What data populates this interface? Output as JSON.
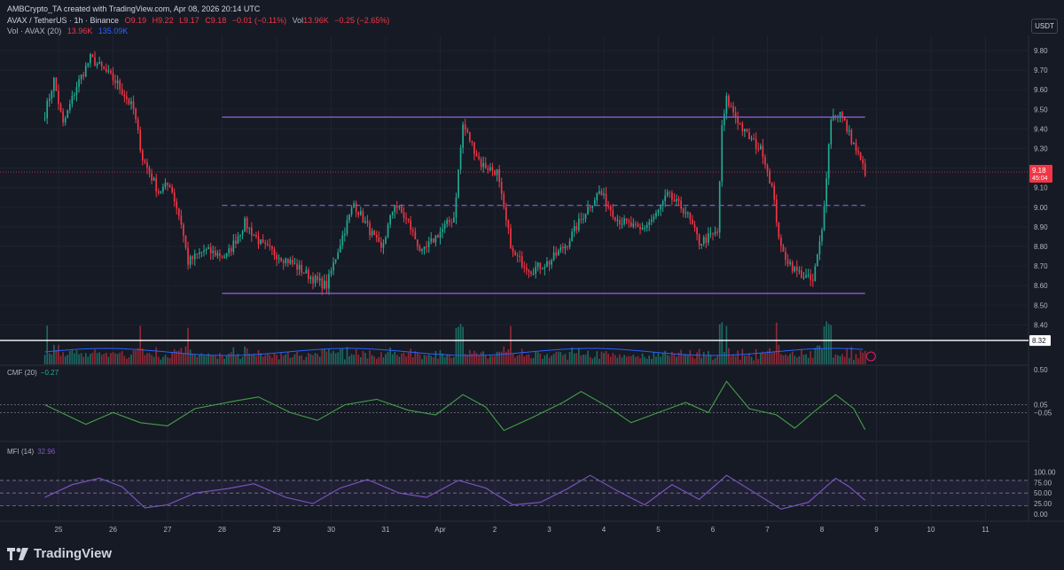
{
  "header": {
    "credit": "AMBCrypto_TA created with TradingView.com, Apr 08, 2026 20:14 UTC",
    "symbol": "AVAX / TetherUS · 1h · Binance",
    "open": "O9.19",
    "high": "H9.22",
    "low": "L9.17",
    "close": "C9.18",
    "change": "−0.01 (−0.11%)",
    "vol_label": "Vol",
    "vol_value": "13.96K",
    "vol_change": "−0.25 (−2.65%)",
    "vol_ma_label": "Vol · AVAX (20)",
    "vol_ma_1": "13.96K",
    "vol_ma_2": "135.09K"
  },
  "currency_button": "USDT",
  "colors": {
    "background": "#161a25",
    "up": "#22ab94",
    "down": "#f23645",
    "range_lines": "#7e57c2",
    "indicator_cmf": "#43a047",
    "indicator_mfi": "#7e57c2",
    "price_label": "#f23645"
  },
  "chart_data": [
    {
      "type": "candlestick",
      "title": "AVAX / TetherUS · 1h · Binance",
      "x_ticks": [
        "25",
        "26",
        "27",
        "28",
        "29",
        "30",
        "31",
        "Apr",
        "2",
        "3",
        "4",
        "5",
        "6",
        "7",
        "8",
        "9",
        "10",
        "11"
      ],
      "y_ticks": [
        "9.80",
        "9.70",
        "9.60",
        "9.50",
        "9.40",
        "9.30",
        "9.20",
        "9.10",
        "9.00",
        "8.90",
        "8.80",
        "8.70",
        "8.60",
        "8.50",
        "8.40"
      ],
      "ylim": [
        8.3,
        9.88
      ],
      "current_price": 9.18,
      "current_price_label": "9.18",
      "countdown_label": "45:04",
      "marked_level": 8.32,
      "marked_level_label": "8.32",
      "range_high": 9.46,
      "range_mid": 9.01,
      "range_low": 8.56,
      "anchors": [
        {
          "x": "Mar 24 18:00",
          "y": 9.48
        },
        {
          "x": "Mar 24 22:00",
          "y": 9.65
        },
        {
          "x": "Mar 25 02:00",
          "y": 9.42
        },
        {
          "x": "Mar 25 08:00",
          "y": 9.62
        },
        {
          "x": "Mar 25 14:00",
          "y": 9.76
        },
        {
          "x": "Mar 25 20:00",
          "y": 9.7
        },
        {
          "x": "Mar 26 02:00",
          "y": 9.63
        },
        {
          "x": "Mar 26 09:00",
          "y": 9.5
        },
        {
          "x": "Mar 26 13:00",
          "y": 9.25
        },
        {
          "x": "Mar 26 20:00",
          "y": 9.08
        },
        {
          "x": "Mar 27 01:00",
          "y": 9.12
        },
        {
          "x": "Mar 27 06:00",
          "y": 8.92
        },
        {
          "x": "Mar 27 09:00",
          "y": 8.72
        },
        {
          "x": "Mar 27 16:00",
          "y": 8.78
        },
        {
          "x": "Mar 28 02:00",
          "y": 8.75
        },
        {
          "x": "Mar 28 10:00",
          "y": 8.92
        },
        {
          "x": "Mar 28 18:00",
          "y": 8.8
        },
        {
          "x": "Mar 29 06:00",
          "y": 8.72
        },
        {
          "x": "Mar 29 18:00",
          "y": 8.62
        },
        {
          "x": "Mar 29 22:00",
          "y": 8.6
        },
        {
          "x": "Mar 30 04:00",
          "y": 8.82
        },
        {
          "x": "Mar 30 10:00",
          "y": 9.02
        },
        {
          "x": "Mar 30 16:00",
          "y": 8.9
        },
        {
          "x": "Mar 30 22:00",
          "y": 8.78
        },
        {
          "x": "Mar 31 04:00",
          "y": 9.02
        },
        {
          "x": "Mar 31 10:00",
          "y": 8.92
        },
        {
          "x": "Mar 31 16:00",
          "y": 8.76
        },
        {
          "x": "Mar 31 22:00",
          "y": 8.85
        },
        {
          "x": "Apr 01 06:00",
          "y": 8.95
        },
        {
          "x": "Apr 01 10:00",
          "y": 9.42
        },
        {
          "x": "Apr 01 18:00",
          "y": 9.22
        },
        {
          "x": "Apr 02 01:00",
          "y": 9.18
        },
        {
          "x": "Apr 02 04:00",
          "y": 8.98
        },
        {
          "x": "Apr 02 08:00",
          "y": 8.76
        },
        {
          "x": "Apr 02 16:00",
          "y": 8.68
        },
        {
          "x": "Apr 03 00:00",
          "y": 8.72
        },
        {
          "x": "Apr 03 08:00",
          "y": 8.82
        },
        {
          "x": "Apr 03 16:00",
          "y": 8.98
        },
        {
          "x": "Apr 03 22:00",
          "y": 9.08
        },
        {
          "x": "Apr 04 06:00",
          "y": 8.94
        },
        {
          "x": "Apr 04 16:00",
          "y": 8.88
        },
        {
          "x": "Apr 04 23:00",
          "y": 8.96
        },
        {
          "x": "Apr 05 04:00",
          "y": 9.06
        },
        {
          "x": "Apr 05 12:00",
          "y": 8.98
        },
        {
          "x": "Apr 05 18:00",
          "y": 8.82
        },
        {
          "x": "Apr 06 02:00",
          "y": 8.87
        },
        {
          "x": "Apr 06 04:00",
          "y": 9.4
        },
        {
          "x": "Apr 06 06:00",
          "y": 9.55
        },
        {
          "x": "Apr 06 14:00",
          "y": 9.38
        },
        {
          "x": "Apr 06 22:00",
          "y": 9.28
        },
        {
          "x": "Apr 07 02:00",
          "y": 9.1
        },
        {
          "x": "Apr 07 06:00",
          "y": 8.78
        },
        {
          "x": "Apr 07 12:00",
          "y": 8.68
        },
        {
          "x": "Apr 07 20:00",
          "y": 8.62
        },
        {
          "x": "Apr 08 00:00",
          "y": 8.88
        },
        {
          "x": "Apr 08 04:00",
          "y": 9.46
        },
        {
          "x": "Apr 08 08:00",
          "y": 9.48
        },
        {
          "x": "Apr 08 14:00",
          "y": 9.32
        },
        {
          "x": "Apr 08 19:00",
          "y": 9.18
        }
      ]
    },
    {
      "type": "bar",
      "title": "Vol · AVAX (20)",
      "series": [
        {
          "name": "Vol · AVAX (20)"
        }
      ]
    },
    {
      "type": "line",
      "title": "CMF (20)",
      "value_label": "−0.27",
      "y_ticks": [
        "0.50",
        "0.05",
        "−0.05"
      ],
      "ylim": [
        -0.45,
        0.5
      ],
      "levels": [
        0.05,
        -0.05
      ],
      "points": [
        {
          "x": "Mar 24 18:00",
          "y": 0.05
        },
        {
          "x": "Mar 25 12:00",
          "y": -0.2
        },
        {
          "x": "Mar 26 00:00",
          "y": -0.05
        },
        {
          "x": "Mar 26 12:00",
          "y": -0.18
        },
        {
          "x": "Mar 27 00:00",
          "y": -0.22
        },
        {
          "x": "Mar 27 12:00",
          "y": 0.0
        },
        {
          "x": "Mar 28 06:00",
          "y": 0.1
        },
        {
          "x": "Mar 28 16:00",
          "y": 0.15
        },
        {
          "x": "Mar 29 06:00",
          "y": -0.05
        },
        {
          "x": "Mar 29 18:00",
          "y": -0.15
        },
        {
          "x": "Mar 30 06:00",
          "y": 0.05
        },
        {
          "x": "Mar 30 20:00",
          "y": 0.12
        },
        {
          "x": "Mar 31 10:00",
          "y": -0.02
        },
        {
          "x": "Mar 31 22:00",
          "y": -0.08
        },
        {
          "x": "Apr 01 10:00",
          "y": 0.18
        },
        {
          "x": "Apr 01 20:00",
          "y": 0.02
        },
        {
          "x": "Apr 02 04:00",
          "y": -0.28
        },
        {
          "x": "Apr 02 16:00",
          "y": -0.12
        },
        {
          "x": "Apr 03 06:00",
          "y": 0.08
        },
        {
          "x": "Apr 03 14:00",
          "y": 0.22
        },
        {
          "x": "Apr 04 02:00",
          "y": 0.02
        },
        {
          "x": "Apr 04 12:00",
          "y": -0.18
        },
        {
          "x": "Apr 05 00:00",
          "y": -0.05
        },
        {
          "x": "Apr 05 12:00",
          "y": 0.08
        },
        {
          "x": "Apr 05 22:00",
          "y": -0.05
        },
        {
          "x": "Apr 06 06:00",
          "y": 0.35
        },
        {
          "x": "Apr 06 16:00",
          "y": 0.0
        },
        {
          "x": "Apr 07 04:00",
          "y": -0.08
        },
        {
          "x": "Apr 07 12:00",
          "y": -0.25
        },
        {
          "x": "Apr 07 20:00",
          "y": -0.05
        },
        {
          "x": "Apr 08 06:00",
          "y": 0.18
        },
        {
          "x": "Apr 08 14:00",
          "y": 0.0
        },
        {
          "x": "Apr 08 19:00",
          "y": -0.27
        }
      ]
    },
    {
      "type": "line",
      "title": "MFI (14)",
      "value_label": "32.96",
      "y_ticks": [
        "100.00",
        "75.00",
        "50.00",
        "25.00",
        "0.00"
      ],
      "ylim": [
        0,
        100
      ],
      "bands": [
        80,
        50,
        20
      ],
      "points": [
        {
          "x": "Mar 24 18:00",
          "y": 40
        },
        {
          "x": "Mar 25 06:00",
          "y": 70
        },
        {
          "x": "Mar 25 18:00",
          "y": 85
        },
        {
          "x": "Mar 26 04:00",
          "y": 65
        },
        {
          "x": "Mar 26 14:00",
          "y": 15
        },
        {
          "x": "Mar 27 00:00",
          "y": 22
        },
        {
          "x": "Mar 27 12:00",
          "y": 50
        },
        {
          "x": "Mar 28 02:00",
          "y": 60
        },
        {
          "x": "Mar 28 14:00",
          "y": 72
        },
        {
          "x": "Mar 29 04:00",
          "y": 40
        },
        {
          "x": "Mar 29 16:00",
          "y": 25
        },
        {
          "x": "Mar 30 04:00",
          "y": 62
        },
        {
          "x": "Mar 30 16:00",
          "y": 82
        },
        {
          "x": "Mar 31 06:00",
          "y": 50
        },
        {
          "x": "Mar 31 18:00",
          "y": 40
        },
        {
          "x": "Apr 01 08:00",
          "y": 80
        },
        {
          "x": "Apr 01 20:00",
          "y": 62
        },
        {
          "x": "Apr 02 08:00",
          "y": 22
        },
        {
          "x": "Apr 02 20:00",
          "y": 28
        },
        {
          "x": "Apr 03 08:00",
          "y": 60
        },
        {
          "x": "Apr 03 18:00",
          "y": 92
        },
        {
          "x": "Apr 04 06:00",
          "y": 55
        },
        {
          "x": "Apr 04 18:00",
          "y": 22
        },
        {
          "x": "Apr 05 06:00",
          "y": 70
        },
        {
          "x": "Apr 05 18:00",
          "y": 35
        },
        {
          "x": "Apr 06 06:00",
          "y": 92
        },
        {
          "x": "Apr 06 18:00",
          "y": 52
        },
        {
          "x": "Apr 07 06:00",
          "y": 12
        },
        {
          "x": "Apr 07 18:00",
          "y": 28
        },
        {
          "x": "Apr 08 06:00",
          "y": 85
        },
        {
          "x": "Apr 08 12:00",
          "y": 65
        },
        {
          "x": "Apr 08 19:00",
          "y": 33
        }
      ]
    }
  ],
  "footer": {
    "brand": "TradingView"
  }
}
